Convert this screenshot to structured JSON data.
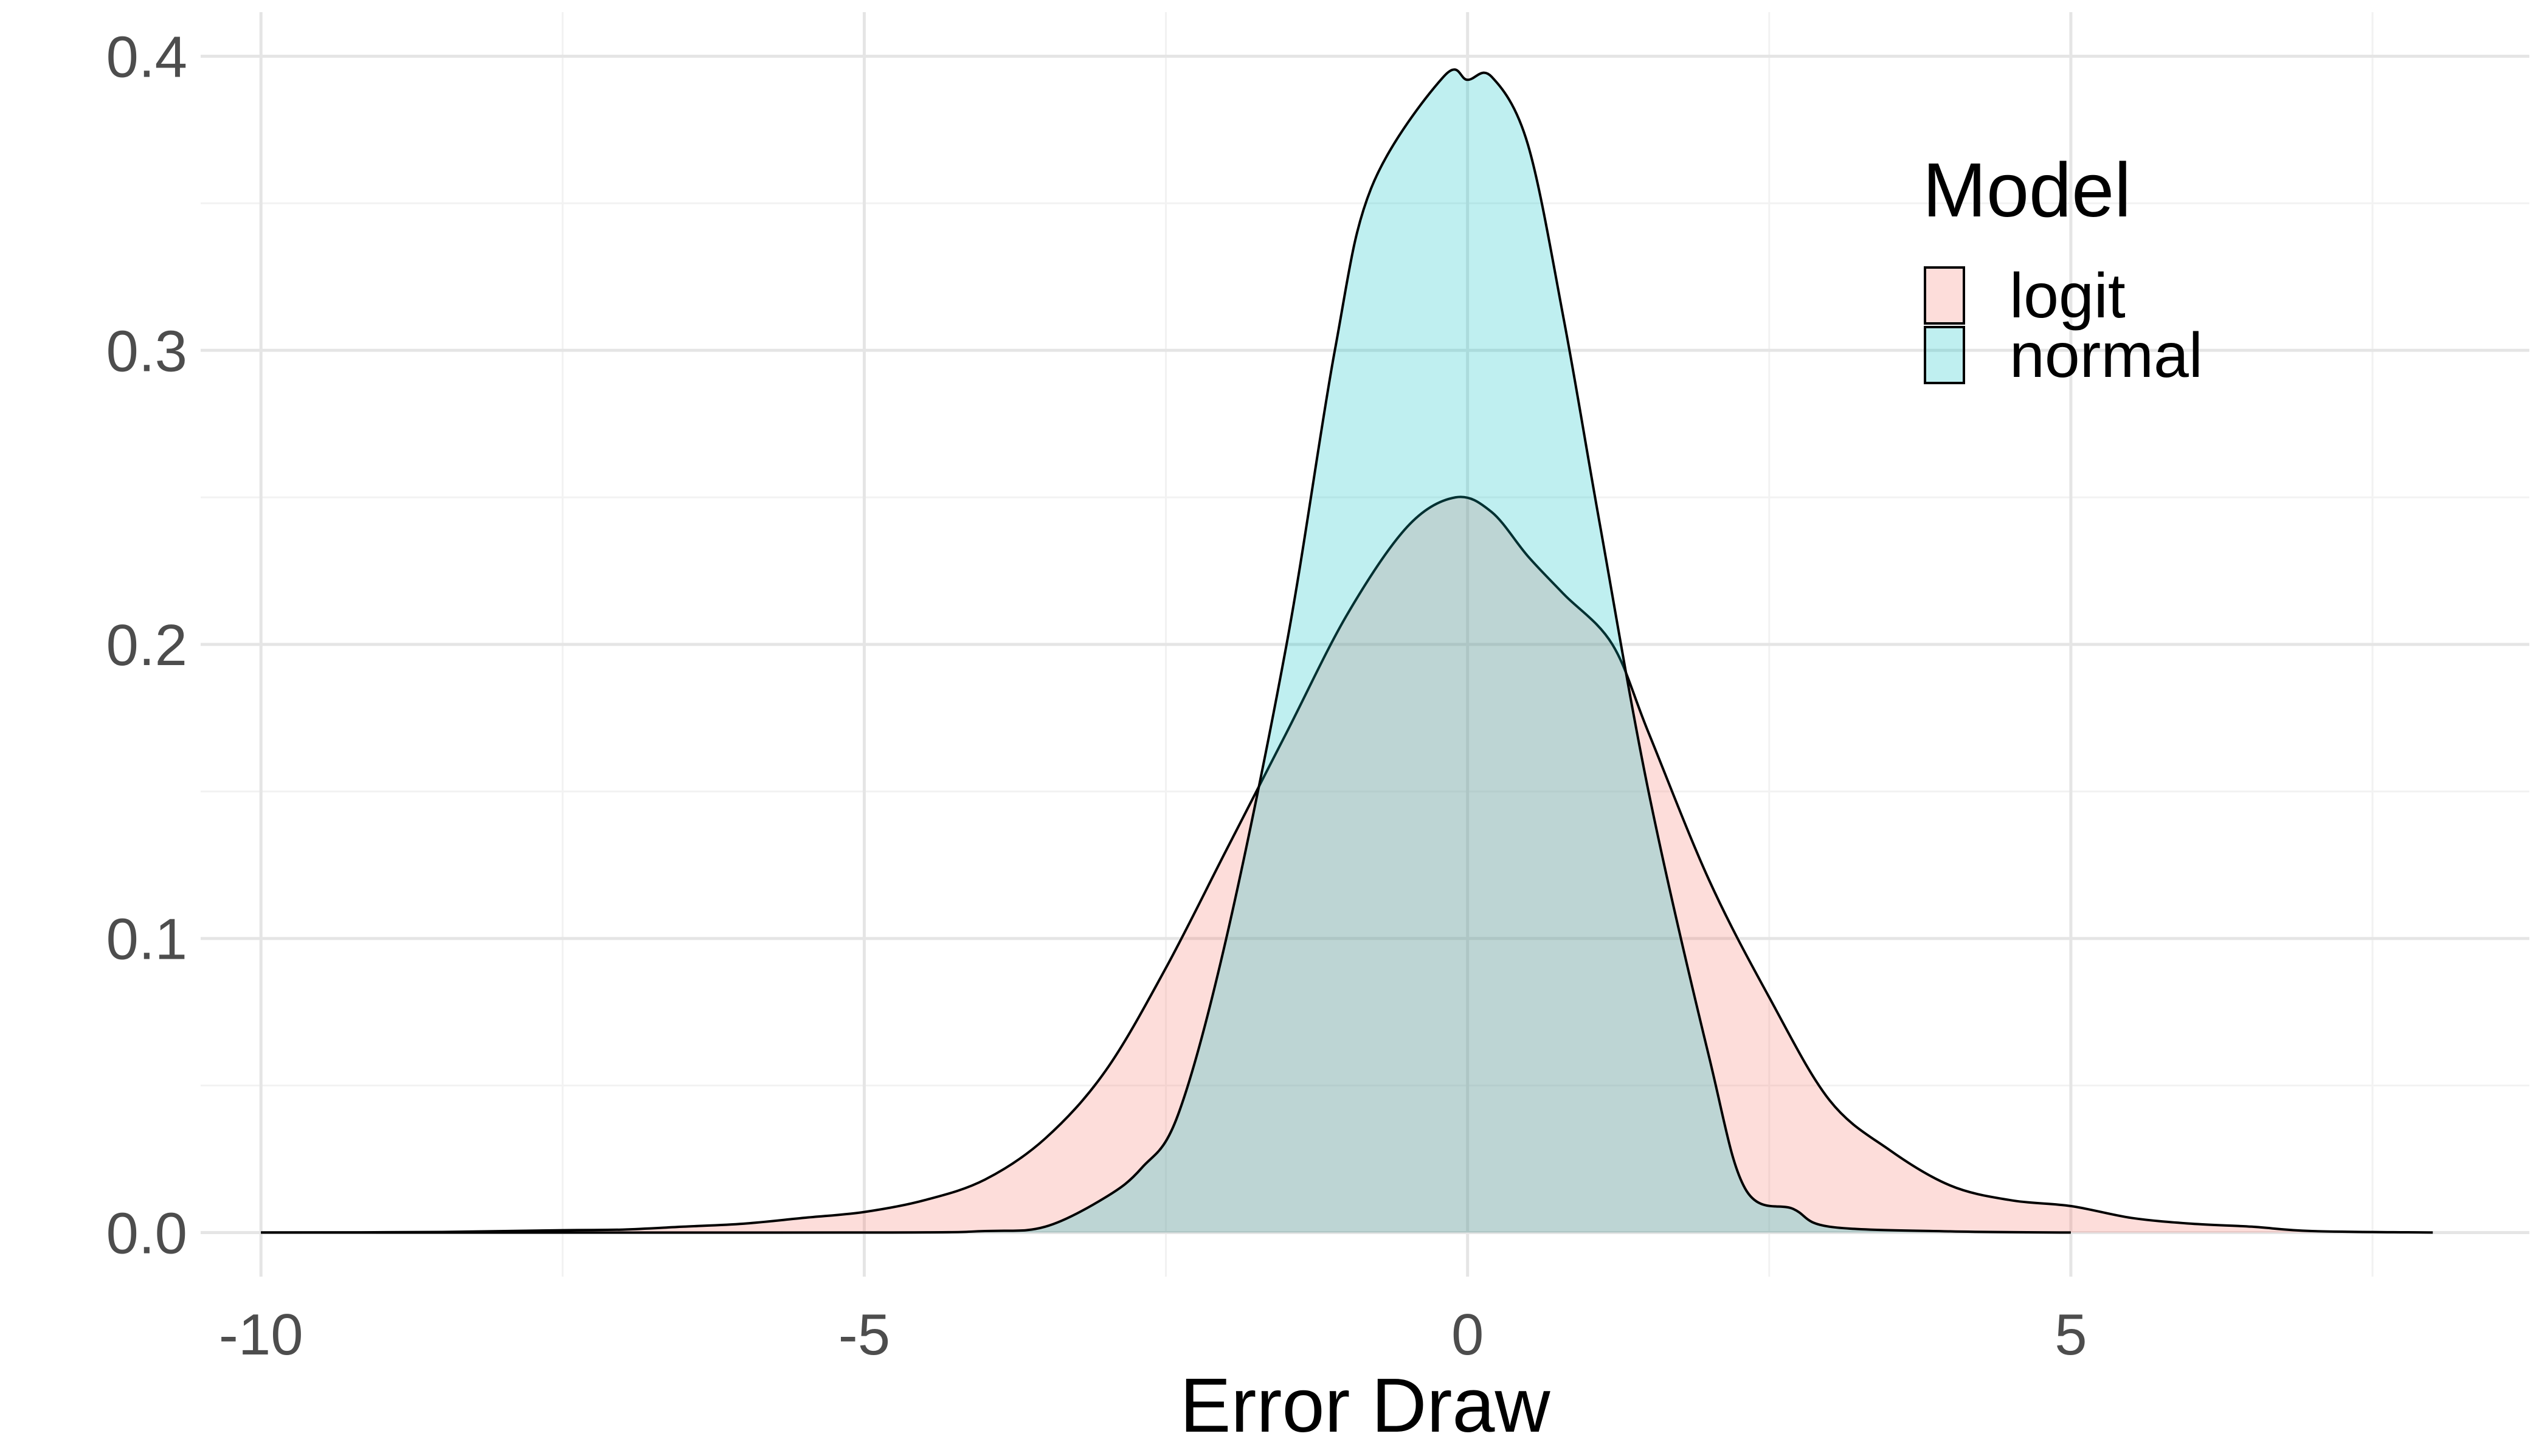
{
  "chart_data": {
    "type": "area",
    "subtype": "density",
    "xlabel": "Error Draw",
    "ylabel": "",
    "xlim": [
      -10.5,
      8.8
    ],
    "ylim": [
      -0.015,
      0.415
    ],
    "x_ticks": [
      -10,
      -5,
      0,
      5
    ],
    "x_tick_labels": [
      "-10",
      "-5",
      "0",
      "5"
    ],
    "x_minor_gridlines": [
      -7.5,
      -2.5,
      2.5,
      7.5
    ],
    "y_ticks": [
      0.0,
      0.1,
      0.2,
      0.3,
      0.4
    ],
    "y_tick_labels": [
      "0.0",
      "0.1",
      "0.2",
      "0.3",
      "0.4"
    ],
    "y_minor_gridlines": [
      0.05,
      0.15,
      0.25,
      0.35
    ],
    "grid": true,
    "legend": {
      "title": "Model",
      "placement": "top-right",
      "items": [
        "logit",
        "normal"
      ]
    },
    "colors": {
      "logit": "#F8766D",
      "normal": "#00BFC4",
      "outline": "#000000",
      "grid_major": "#e5e5e5",
      "grid_minor": "#f2f2f2"
    },
    "fill_opacity": 0.25,
    "series": [
      {
        "name": "logit",
        "points": [
          [
            -10.0,
            0.0
          ],
          [
            -8.5,
            0.0002
          ],
          [
            -7.5,
            0.0008
          ],
          [
            -7.0,
            0.001
          ],
          [
            -6.5,
            0.002
          ],
          [
            -6.0,
            0.003
          ],
          [
            -5.5,
            0.005
          ],
          [
            -5.0,
            0.007
          ],
          [
            -4.5,
            0.011
          ],
          [
            -4.0,
            0.018
          ],
          [
            -3.5,
            0.032
          ],
          [
            -3.0,
            0.055
          ],
          [
            -2.5,
            0.09
          ],
          [
            -2.0,
            0.13
          ],
          [
            -1.5,
            0.17
          ],
          [
            -1.0,
            0.21
          ],
          [
            -0.5,
            0.24
          ],
          [
            -0.1,
            0.25
          ],
          [
            0.2,
            0.245
          ],
          [
            0.5,
            0.23
          ],
          [
            0.8,
            0.217
          ],
          [
            1.2,
            0.2
          ],
          [
            1.5,
            0.17
          ],
          [
            2.0,
            0.12
          ],
          [
            2.5,
            0.08
          ],
          [
            3.0,
            0.045
          ],
          [
            3.5,
            0.028
          ],
          [
            4.0,
            0.016
          ],
          [
            4.5,
            0.011
          ],
          [
            5.0,
            0.009
          ],
          [
            5.5,
            0.005
          ],
          [
            6.0,
            0.003
          ],
          [
            6.5,
            0.002
          ],
          [
            7.0,
            0.0005
          ],
          [
            8.0,
            0.0
          ]
        ]
      },
      {
        "name": "normal",
        "points": [
          [
            -10.0,
            0.0
          ],
          [
            -5.0,
            0.0
          ],
          [
            -4.0,
            0.0005
          ],
          [
            -3.5,
            0.002
          ],
          [
            -3.0,
            0.012
          ],
          [
            -2.7,
            0.022
          ],
          [
            -2.4,
            0.04
          ],
          [
            -2.0,
            0.1
          ],
          [
            -1.5,
            0.2
          ],
          [
            -1.1,
            0.3
          ],
          [
            -0.8,
            0.355
          ],
          [
            -0.2,
            0.393
          ],
          [
            0.0,
            0.392
          ],
          [
            0.2,
            0.393
          ],
          [
            0.5,
            0.37
          ],
          [
            0.8,
            0.31
          ],
          [
            1.1,
            0.24
          ],
          [
            1.5,
            0.15
          ],
          [
            2.0,
            0.06
          ],
          [
            2.3,
            0.015
          ],
          [
            2.7,
            0.008
          ],
          [
            3.0,
            0.002
          ],
          [
            4.0,
            0.0004
          ],
          [
            5.0,
            0.0
          ]
        ]
      }
    ]
  }
}
